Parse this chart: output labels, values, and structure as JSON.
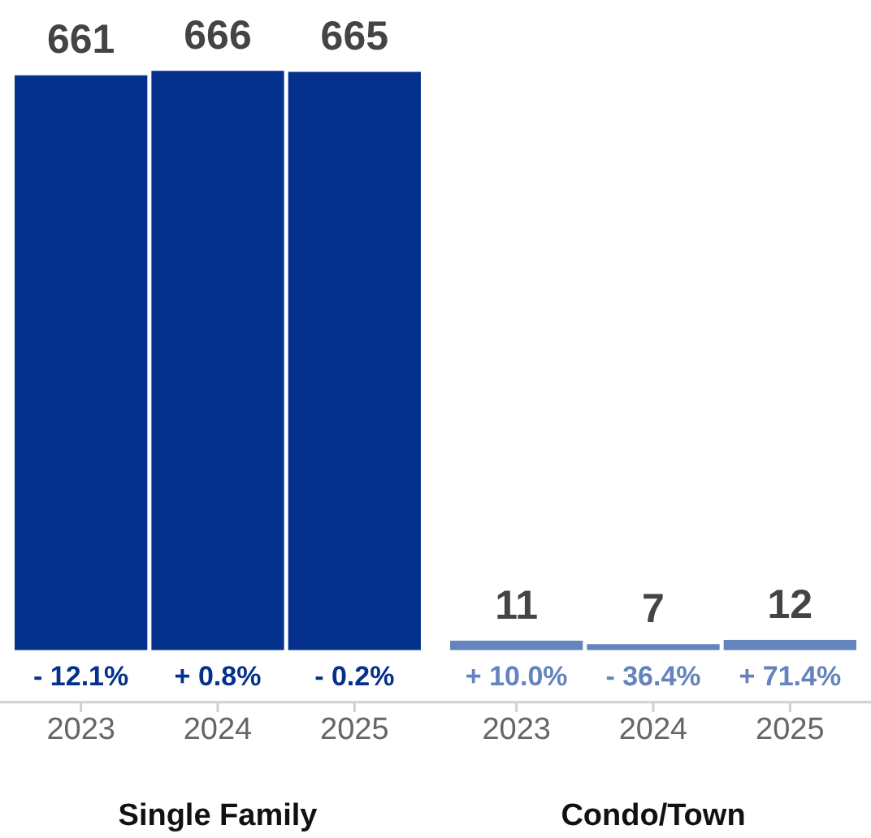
{
  "chart_data": [
    {
      "type": "bar",
      "xlabel": "Single Family",
      "categories": [
        "2023",
        "2024",
        "2025"
      ],
      "values": [
        661,
        666,
        665
      ],
      "color": "#04318c",
      "data_labels": true,
      "grid": false,
      "legend": false,
      "annotations": [
        "- 12.1%",
        "+ 0.8%",
        "- 0.2%"
      ]
    },
    {
      "type": "bar",
      "xlabel": "Condo/Town",
      "categories": [
        "2023",
        "2024",
        "2025"
      ],
      "values": [
        11,
        7,
        12
      ],
      "color": "#6583bd",
      "data_labels": true,
      "grid": false,
      "legend": false,
      "annotations": [
        "+ 10.0%",
        "- 36.4%",
        "+ 71.4%"
      ]
    }
  ]
}
